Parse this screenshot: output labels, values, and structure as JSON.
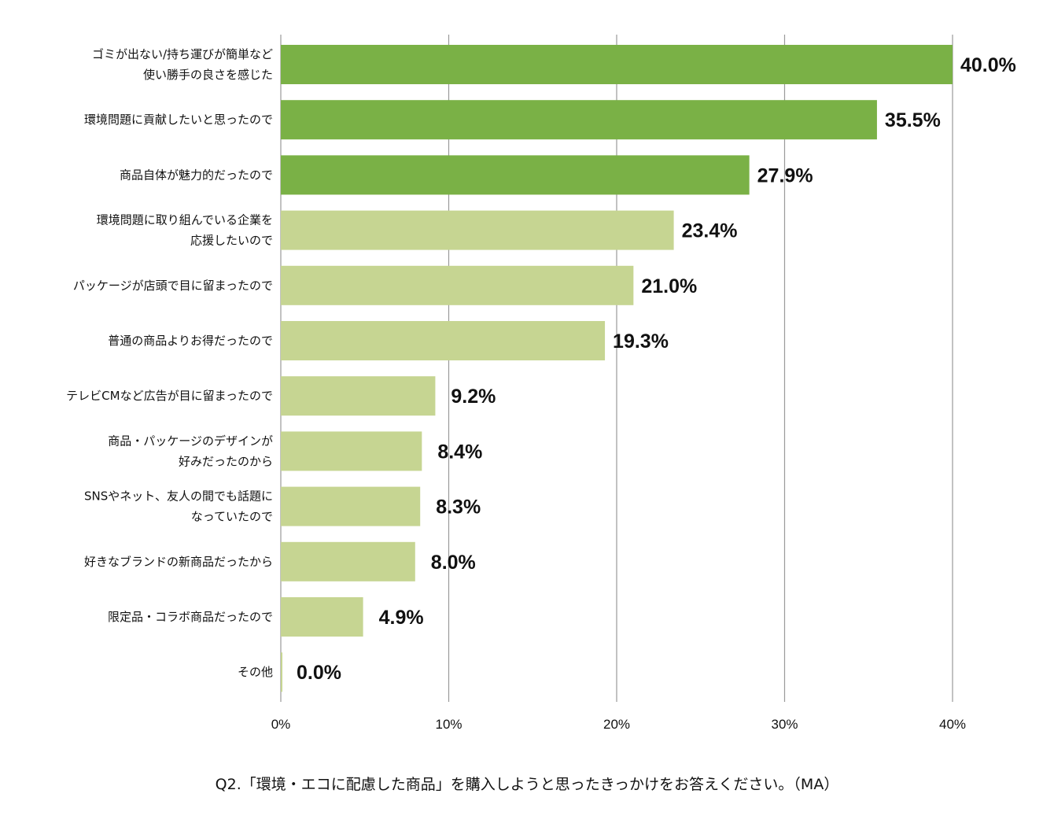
{
  "chart_data": {
    "type": "bar",
    "orientation": "horizontal",
    "categories": [
      [
        "ゴミが出ない/持ち運びが簡単など",
        "使い勝手の良さを感じた"
      ],
      [
        "環境問題に貢献したいと思ったので"
      ],
      [
        "商品自体が魅力的だったので"
      ],
      [
        "環境問題に取り組んでいる企業を",
        "応援したいので"
      ],
      [
        "パッケージが店頭で目に留まったので"
      ],
      [
        "普通の商品よりお得だったので"
      ],
      [
        "テレビCMなど広告が目に留まったので"
      ],
      [
        "商品・パッケージのデザインが",
        "好みだったのから"
      ],
      [
        "SNSやネット、友人の間でも話題に",
        "なっていたので"
      ],
      [
        "好きなブランドの新商品だったから"
      ],
      [
        "限定品・コラボ商品だったので"
      ],
      [
        "その他"
      ]
    ],
    "values": [
      40.0,
      35.5,
      27.9,
      23.4,
      21.0,
      19.3,
      9.2,
      8.4,
      8.3,
      8.0,
      4.9,
      0.0
    ],
    "value_labels": [
      "40.0%",
      "35.5%",
      "27.9%",
      "23.4%",
      "21.0%",
      "19.3%",
      "9.2%",
      "8.4%",
      "8.3%",
      "8.0%",
      "4.9%",
      "0.0%"
    ],
    "highlight_count": 3,
    "colors": {
      "highlight": "#7ab146",
      "normal": "#c6d592",
      "grid": "#9a9a9a"
    },
    "xlim": [
      0,
      40
    ],
    "xticks": [
      0,
      10,
      20,
      30,
      40
    ],
    "xtick_labels": [
      "0%",
      "10%",
      "20%",
      "30%",
      "40%"
    ],
    "grid": true,
    "title": "",
    "xlabel": "",
    "ylabel": ""
  },
  "caption": "Q2.「環境・エコに配慮した商品」を購入しようと思ったきっかけをお答えください。（MA）"
}
